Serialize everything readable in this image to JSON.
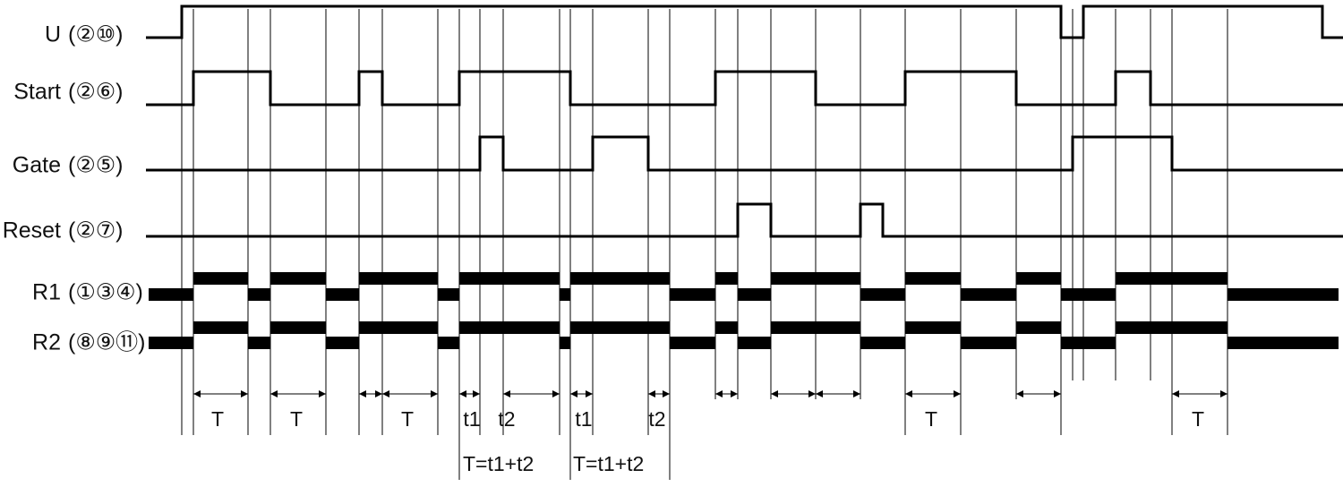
{
  "signals": [
    {
      "name": "U",
      "pins": "(②⑩)"
    },
    {
      "name": "Start",
      "pins": "(②⑥)"
    },
    {
      "name": "Gate",
      "pins": "(②⑤)"
    },
    {
      "name": "Reset",
      "pins": "(②⑦)"
    },
    {
      "name": "R1",
      "pins": "(①③④)"
    },
    {
      "name": "R2",
      "pins": "(⑧⑨⑪)"
    }
  ],
  "interval_labels": [
    "T",
    "T",
    "T",
    "t1",
    "t2",
    "t1",
    "t2",
    "T",
    "T"
  ],
  "formulas": [
    "T=t1+t2",
    "T=t1+t2"
  ]
}
